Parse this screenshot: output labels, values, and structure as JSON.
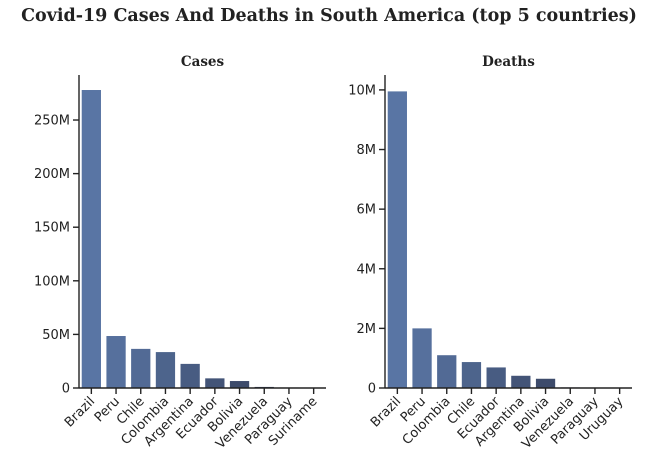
{
  "title": "Covid-19 Cases And Deaths in South America (top 5 countries)",
  "chart_data": [
    {
      "type": "bar",
      "title": "Cases",
      "categories": [
        "Brazil",
        "Peru",
        "Chile",
        "Colombia",
        "Argentina",
        "Ecuador",
        "Bolivia",
        "Venezuela",
        "Paraguay",
        "Suriname"
      ],
      "values": [
        278000000,
        48500000,
        36500000,
        33500000,
        22500000,
        9000000,
        6500000,
        1000000,
        500000,
        200000
      ],
      "ylim": [
        0,
        292000000
      ],
      "yticks": [
        0,
        50000000,
        100000000,
        150000000,
        200000000,
        250000000
      ],
      "ytick_labels": [
        "0",
        "50M",
        "100M",
        "150M",
        "200M",
        "250M"
      ],
      "colors": [
        "#5975a4",
        "#56709d",
        "#526a95",
        "#4d648c",
        "#485c82",
        "#435477",
        "#3d4b6b",
        "#37435f",
        "#323a53",
        "#2c3348"
      ]
    },
    {
      "type": "bar",
      "title": "Deaths",
      "categories": [
        "Brazil",
        "Peru",
        "Colombia",
        "Chile",
        "Ecuador",
        "Argentina",
        "Bolivia",
        "Venezuela",
        "Paraguay",
        "Uruguay"
      ],
      "values": [
        9950000,
        2000000,
        1100000,
        870000,
        690000,
        410000,
        310000,
        20000,
        10000,
        5000
      ],
      "ylim": [
        0,
        10500000
      ],
      "yticks": [
        0,
        2000000,
        4000000,
        6000000,
        8000000,
        10000000
      ],
      "ytick_labels": [
        "0",
        "2M",
        "4M",
        "6M",
        "8M",
        "10M"
      ],
      "colors": [
        "#5975a4",
        "#56709d",
        "#526a95",
        "#4d648c",
        "#485c82",
        "#435477",
        "#3d4b6b",
        "#37435f",
        "#323a53",
        "#2c3348"
      ]
    }
  ]
}
